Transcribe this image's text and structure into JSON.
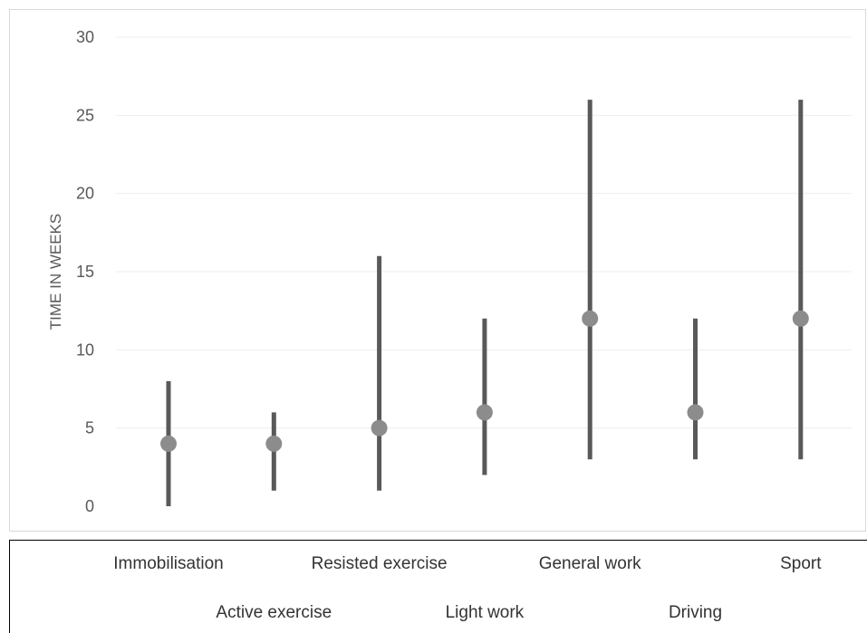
{
  "chart_data": {
    "type": "range-dot",
    "ylabel": "TIME IN WEEKS",
    "ylim": [
      0,
      30
    ],
    "yticks": [
      0,
      5,
      10,
      15,
      20,
      25,
      30
    ],
    "grid": true,
    "categories": [
      "Immobilisation",
      "Active exercise",
      "Resisted exercise",
      "Light work",
      "General work",
      "Driving",
      "Sport"
    ],
    "series": [
      {
        "values": [
          4,
          4,
          5,
          6,
          12,
          6,
          12
        ],
        "low": [
          0,
          1,
          1,
          2,
          3,
          3,
          3
        ],
        "high": [
          8,
          6,
          16,
          12,
          26,
          12,
          26
        ]
      }
    ],
    "colors": {
      "range_line": "#595959",
      "marker": "#8c8c8c",
      "grid": "#eeeeee",
      "tick_text": "#595959"
    }
  }
}
